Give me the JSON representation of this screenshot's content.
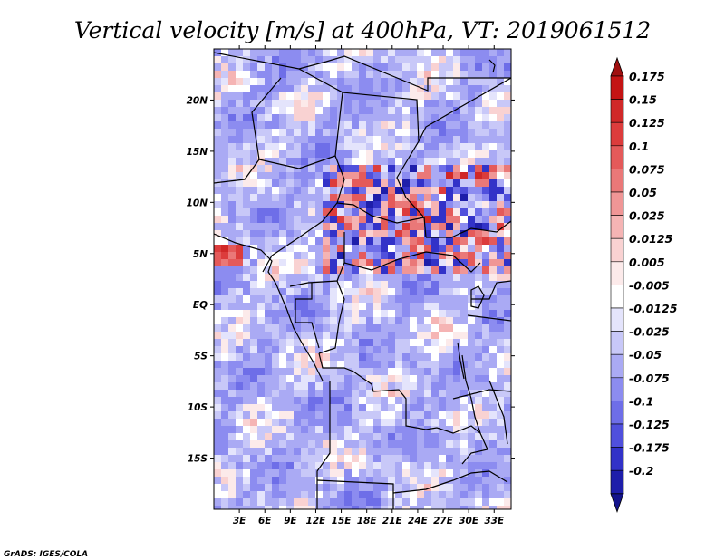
{
  "title": "Vertical velocity [m/s] at 400hPa, VT: 2019061512",
  "credit": "GrADS: IGES/COLA",
  "map": {
    "lon_range": [
      0,
      35
    ],
    "lat_range": [
      -20,
      25
    ],
    "lat_ticks": [
      {
        "value": 20,
        "label": "20N"
      },
      {
        "value": 15,
        "label": "15N"
      },
      {
        "value": 10,
        "label": "10N"
      },
      {
        "value": 5,
        "label": "5N"
      },
      {
        "value": 0,
        "label": "EQ"
      },
      {
        "value": -5,
        "label": "5S"
      },
      {
        "value": -10,
        "label": "10S"
      },
      {
        "value": -15,
        "label": "15S"
      }
    ],
    "lon_ticks": [
      {
        "value": 3,
        "label": "3E"
      },
      {
        "value": 6,
        "label": "6E"
      },
      {
        "value": 9,
        "label": "9E"
      },
      {
        "value": 12,
        "label": "12E"
      },
      {
        "value": 15,
        "label": "15E"
      },
      {
        "value": 18,
        "label": "18E"
      },
      {
        "value": 21,
        "label": "21E"
      },
      {
        "value": 24,
        "label": "24E"
      },
      {
        "value": 27,
        "label": "27E"
      },
      {
        "value": 30,
        "label": "30E"
      },
      {
        "value": 33,
        "label": "33E"
      }
    ]
  },
  "colorbar": {
    "levels": [
      {
        "label": "0.175",
        "color": "#c41414"
      },
      {
        "label": "0.15",
        "color": "#d02828"
      },
      {
        "label": "0.125",
        "color": "#dc3c3c"
      },
      {
        "label": "0.1",
        "color": "#e45a5a"
      },
      {
        "label": "0.075",
        "color": "#ea7878"
      },
      {
        "label": "0.05",
        "color": "#f09696"
      },
      {
        "label": "0.025",
        "color": "#f5b4b4"
      },
      {
        "label": "0.0125",
        "color": "#f9d2d2"
      },
      {
        "label": "0.005",
        "color": "#fceaea"
      },
      {
        "label": "-0.005",
        "color": "#ffffff"
      },
      {
        "label": "-0.0125",
        "color": "#e4e4fc"
      },
      {
        "label": "-0.025",
        "color": "#c8c8f8"
      },
      {
        "label": "-0.05",
        "color": "#aaaaf4"
      },
      {
        "label": "-0.075",
        "color": "#8c8cf0"
      },
      {
        "label": "-0.1",
        "color": "#6e6ee8"
      },
      {
        "label": "-0.125",
        "color": "#5050dc"
      },
      {
        "label": "-0.175",
        "color": "#3232c8"
      },
      {
        "label": "-0.2",
        "color": "#1e1eaa"
      }
    ],
    "top_cap_color": "#a01010",
    "bottom_cap_color": "#14148c"
  }
}
